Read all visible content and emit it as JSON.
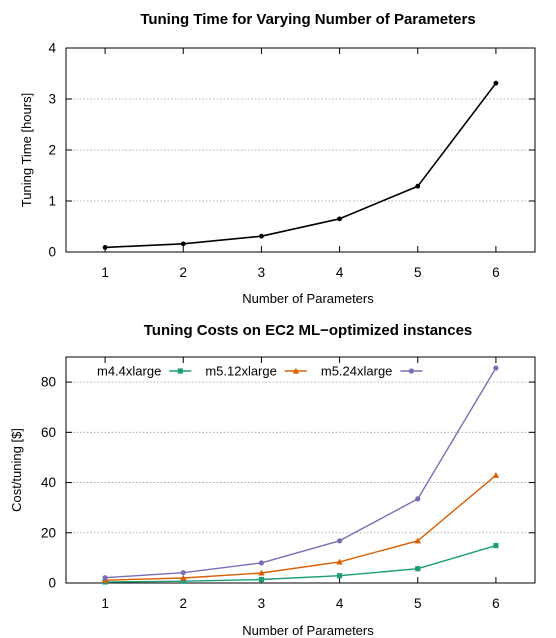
{
  "chart_data": [
    {
      "type": "line",
      "title": "Tuning Time for Varying Number of Parameters",
      "xlabel": "Number of Parameters",
      "ylabel": "Tuning Time [hours]",
      "x": [
        1,
        2,
        3,
        4,
        5,
        6
      ],
      "xticks": [
        "1",
        "2",
        "3",
        "4",
        "5",
        "6"
      ],
      "xlim": [
        0.5,
        6.5
      ],
      "ylim": [
        0,
        4
      ],
      "yticks": [
        "0",
        "1",
        "2",
        "3",
        "4"
      ],
      "grid": true,
      "series": [
        {
          "values": [
            0.09,
            0.16,
            0.31,
            0.65,
            1.29,
            3.31
          ],
          "color": "#000000",
          "marker": "circle"
        }
      ]
    },
    {
      "type": "line",
      "title": "Tuning Costs on EC2 ML−optimized instances",
      "xlabel": "Number of Parameters",
      "ylabel": "Cost/tuning [$]",
      "x": [
        1,
        2,
        3,
        4,
        5,
        6
      ],
      "xticks": [
        "1",
        "2",
        "3",
        "4",
        "5",
        "6"
      ],
      "xlim": [
        0.5,
        6.5
      ],
      "ylim": [
        0,
        90
      ],
      "yticks": [
        "0",
        "20",
        "40",
        "60",
        "80"
      ],
      "grid": true,
      "legend": "top-left",
      "series": [
        {
          "name": "m4.4xlarge",
          "values": [
            0.4,
            0.7,
            1.4,
            2.9,
            5.7,
            14.9
          ],
          "color": "#1b9e77",
          "marker": "square"
        },
        {
          "name": "m5.12xlarge",
          "values": [
            1.1,
            2.0,
            4.0,
            8.4,
            16.8,
            42.9
          ],
          "color": "#d95f02",
          "marker": "triangle"
        },
        {
          "name": "m5.24xlarge",
          "values": [
            2.1,
            4.1,
            8.0,
            16.8,
            33.5,
            85.6
          ],
          "color": "#7570b3",
          "marker": "circle"
        }
      ]
    }
  ]
}
